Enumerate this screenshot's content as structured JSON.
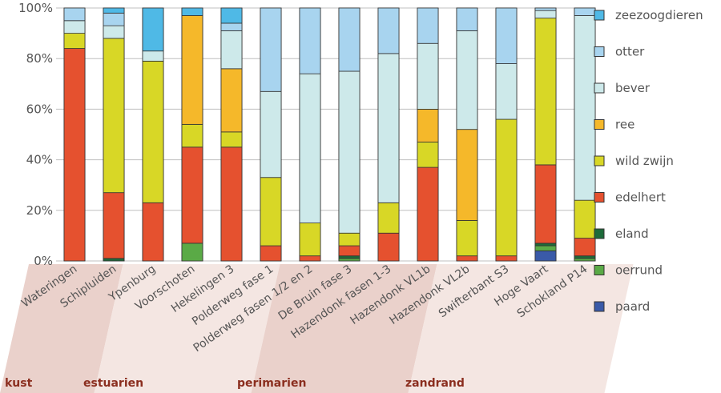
{
  "chart_data": {
    "type": "bar",
    "stacked": true,
    "orientation": "vertical",
    "ylim": [
      0,
      100
    ],
    "yticks": [
      "0%",
      "20%",
      "40%",
      "60%",
      "80%",
      "100%"
    ],
    "grid": true,
    "legend_position": "right",
    "categories": [
      "Wateringen",
      "Schipluiden",
      "Ypenburg",
      "Voorschoten",
      "Hekelingen 3",
      "Polderweg fase 1",
      "Polderweg fasen 1/2 en 2",
      "De Bruin fase 3",
      "Hazendonk fasen 1-3",
      "Hazendonk VL1b",
      "Hazendonk VL2b",
      "Swifterbant S3",
      "Hoge Vaart",
      "Schokland P14"
    ],
    "groups": [
      {
        "label": "kust",
        "categories": [
          "Wateringen"
        ]
      },
      {
        "label": "estuarien",
        "categories": [
          "Schipluiden",
          "Ypenburg",
          "Voorschoten",
          "Hekelingen 3"
        ]
      },
      {
        "label": "perimarien",
        "categories": [
          "Polderweg fase 1",
          "Polderweg fasen 1/2 en 2",
          "De Bruin fase 3",
          "Hazendonk fasen 1-3"
        ]
      },
      {
        "label": "zandrand",
        "categories": [
          "Hazendonk VL1b",
          "Hazendonk VL2b",
          "Swifterbant S3",
          "Hoge Vaart",
          "Schokland P14"
        ]
      }
    ],
    "series": [
      {
        "name": "paard",
        "color": "#3a5aa8",
        "values": [
          0,
          0,
          0,
          0,
          0,
          0,
          0,
          0,
          0,
          0,
          0,
          0,
          4,
          0
        ]
      },
      {
        "name": "oerrund",
        "color": "#5aaa46",
        "values": [
          0,
          0,
          0,
          7,
          0,
          0,
          0,
          1,
          0,
          0,
          0,
          0,
          2,
          1
        ]
      },
      {
        "name": "eland",
        "color": "#1d6b3a",
        "values": [
          0,
          1,
          0,
          0,
          0,
          0,
          0,
          1,
          0,
          0,
          0,
          0,
          1,
          1
        ]
      },
      {
        "name": "edelhert",
        "color": "#e5512f",
        "values": [
          84,
          26,
          23,
          38,
          45,
          6,
          2,
          4,
          11,
          37,
          2,
          2,
          31,
          7
        ]
      },
      {
        "name": "wild zwijn",
        "color": "#d8d726",
        "values": [
          6,
          61,
          56,
          9,
          6,
          27,
          13,
          5,
          12,
          10,
          14,
          54,
          58,
          15
        ]
      },
      {
        "name": "ree",
        "color": "#f5b82a",
        "values": [
          0,
          0,
          0,
          43,
          25,
          0,
          0,
          0,
          0,
          13,
          36,
          0,
          0,
          0
        ]
      },
      {
        "name": "bever",
        "color": "#cde9ea",
        "values": [
          5,
          5,
          4,
          0,
          15,
          34,
          59,
          64,
          59,
          26,
          39,
          22,
          3,
          73
        ]
      },
      {
        "name": "otter",
        "color": "#a8d4ef",
        "values": [
          5,
          5,
          0,
          0,
          3,
          33,
          26,
          25,
          18,
          14,
          9,
          22,
          1,
          3
        ]
      },
      {
        "name": "zeezoogdieren",
        "color": "#4fb9e6",
        "values": [
          0,
          2,
          17,
          3,
          6,
          0,
          0,
          0,
          0,
          0,
          0,
          0,
          0,
          0
        ]
      }
    ]
  }
}
